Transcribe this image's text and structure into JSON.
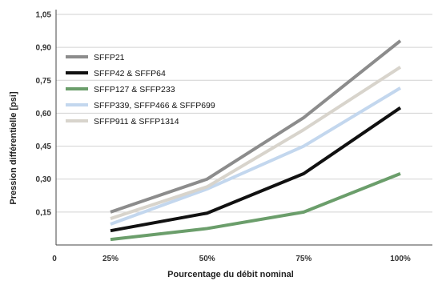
{
  "chart_data": {
    "type": "line",
    "title": "",
    "xlabel": "Pourcentage du débit nominal",
    "ylabel": "Pression différentielle [psi]",
    "x_ticks": [
      "0",
      "25%",
      "50%",
      "75%",
      "100%"
    ],
    "x": [
      25,
      50,
      75,
      100
    ],
    "xlim": [
      0,
      100
    ],
    "y_ticks": [
      "0,15",
      "0,30",
      "0,45",
      "0,60",
      "0,75",
      "0,90",
      "1,05"
    ],
    "ylim": [
      0,
      1.05
    ],
    "grid": "horizontal",
    "legend_position": "top-left",
    "series": [
      {
        "name": "SFFP21",
        "color": "#8c8c8c",
        "values": [
          0.15,
          0.3,
          0.58,
          0.93
        ]
      },
      {
        "name": "SFFP42 & SFFP64",
        "color": "#111111",
        "values": [
          0.065,
          0.145,
          0.325,
          0.625
        ]
      },
      {
        "name": "SFFP127 & SFFP233",
        "color": "#6b9e6b",
        "values": [
          0.025,
          0.075,
          0.15,
          0.325
        ]
      },
      {
        "name": "SFFP339, SFFP466 & SFFP699",
        "color": "#c3d7ee",
        "values": [
          0.095,
          0.255,
          0.45,
          0.715
        ]
      },
      {
        "name": "SFFP911 & SFFP1314",
        "color": "#d8d4cc",
        "values": [
          0.12,
          0.265,
          0.525,
          0.81
        ]
      }
    ]
  }
}
